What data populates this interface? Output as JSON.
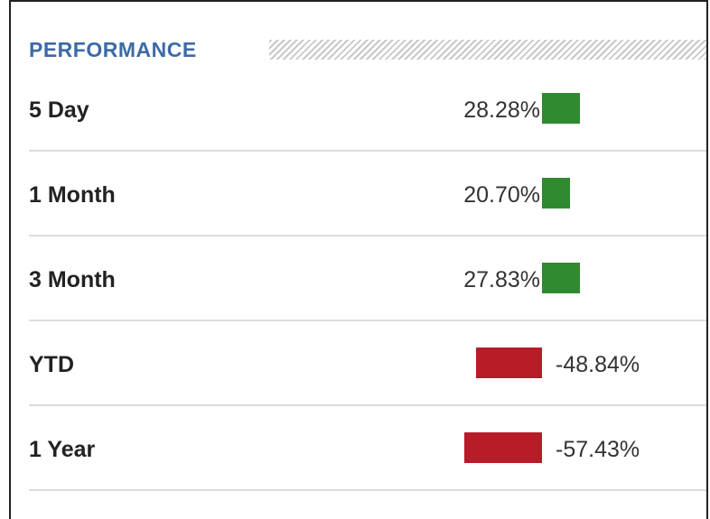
{
  "header": {
    "title": "PERFORMANCE"
  },
  "colors": {
    "title": "#3d6aa6",
    "positive": "#2f8a2f",
    "negative": "#b71c28"
  },
  "rows": [
    {
      "label": "5 Day",
      "value": "28.28%",
      "change_pct": 28.28
    },
    {
      "label": "1 Month",
      "value": "20.70%",
      "change_pct": 20.7
    },
    {
      "label": "3 Month",
      "value": "27.83%",
      "change_pct": 27.83
    },
    {
      "label": "YTD",
      "value": "-48.84%",
      "change_pct": -48.84
    },
    {
      "label": "1 Year",
      "value": "-57.43%",
      "change_pct": -57.43
    }
  ]
}
